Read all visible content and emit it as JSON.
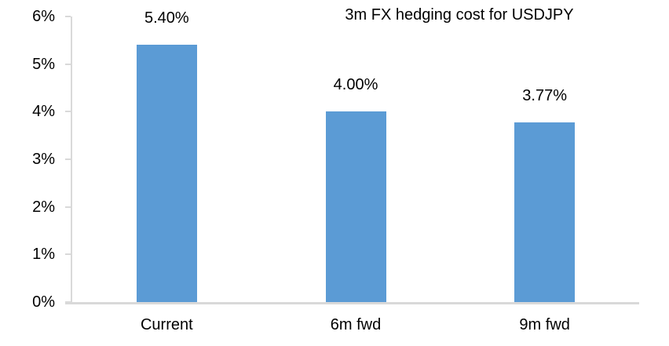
{
  "chart_data": {
    "type": "bar",
    "title": "3m FX hedging cost for USDJPY",
    "categories": [
      "Current",
      "6m fwd",
      "9m fwd"
    ],
    "values": [
      5.4,
      4.0,
      3.77
    ],
    "data_labels": [
      "5.40%",
      "4.00%",
      "3.77%"
    ],
    "xlabel": "",
    "ylabel": "",
    "ylim": [
      0,
      6
    ],
    "ytick_step": 1,
    "ytick_labels": [
      "0%",
      "1%",
      "2%",
      "3%",
      "4%",
      "5%",
      "6%"
    ],
    "grid": false,
    "legend_position": "none",
    "bar_color": "#5B9BD5",
    "axis_color": "#D9D9D9",
    "text_color": "#000000",
    "background_color": "#FFFFFF"
  }
}
